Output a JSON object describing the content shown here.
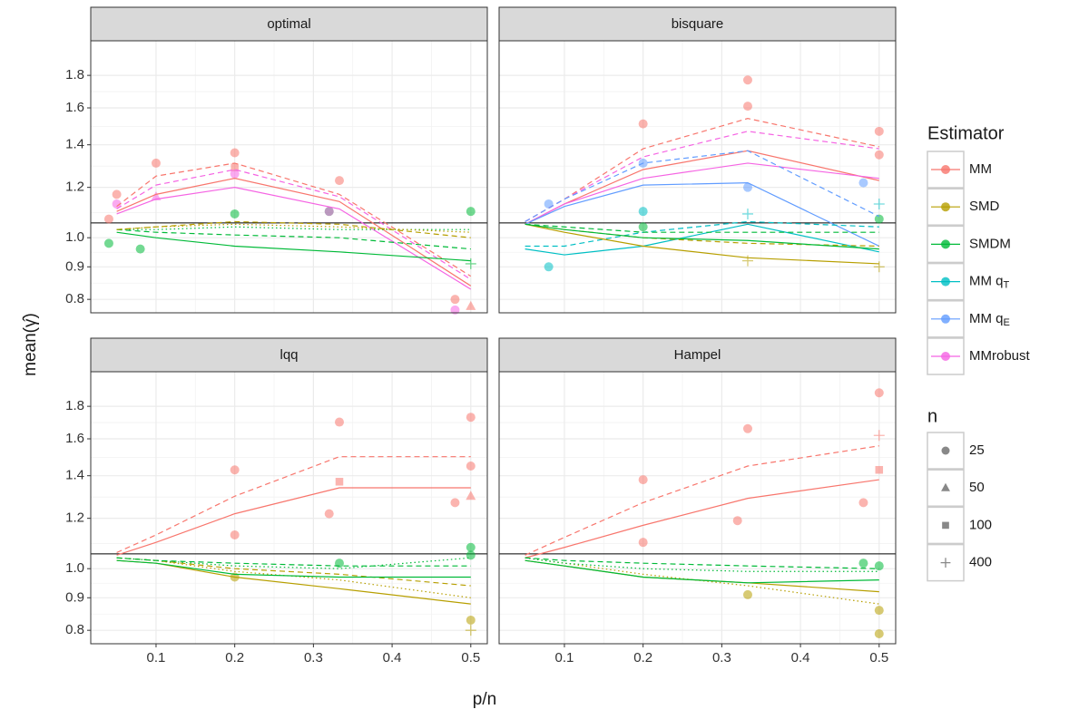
{
  "chart_data": [
    {
      "type": "line",
      "title": "optimal",
      "log_y": true,
      "grid": true,
      "hline": 1.055,
      "x": [
        0.05,
        0.1,
        0.2,
        0.333,
        0.5
      ],
      "xlim": [
        0.017,
        0.521
      ],
      "xticks": [
        0.1,
        0.2,
        0.3,
        0.4,
        0.5
      ],
      "ylim": [
        0.762,
        2.04
      ],
      "yticks": [
        0.8,
        0.9,
        {
          "value": 1,
          "label": "1.0"
        },
        1.2,
        1.4,
        1.6,
        1.8
      ],
      "series": [
        {
          "color": "#F8766D",
          "dash": "solid",
          "values": [
            1.1,
            1.17,
            1.24,
            1.14,
            0.84
          ]
        },
        {
          "color": "#F8766D",
          "dash": "dashed",
          "values": [
            1.12,
            1.25,
            1.31,
            1.17,
            0.87
          ]
        },
        {
          "color": "#F564E3",
          "dash": "solid",
          "values": [
            1.09,
            1.15,
            1.2,
            1.11,
            0.83
          ]
        },
        {
          "color": "#F564E3",
          "dash": "dashed",
          "values": [
            1.11,
            1.21,
            1.28,
            1.16,
            0.86
          ]
        },
        {
          "color": "#00BA38",
          "dash": "solid",
          "values": [
            1.02,
            1.0,
            0.97,
            0.95,
            0.92
          ]
        },
        {
          "color": "#00BA38",
          "dash": "dashed",
          "values": [
            1.03,
            1.02,
            1.01,
            1.0,
            0.96
          ]
        },
        {
          "color": "#00BA38",
          "dash": "dotted",
          "values": [
            1.03,
            1.03,
            1.04,
            1.03,
            1.03
          ]
        },
        {
          "color": "#B79F00",
          "dash": "dashed",
          "values": [
            1.03,
            1.04,
            1.06,
            1.05,
            1.0
          ]
        },
        {
          "color": "#B79F00",
          "dash": "dotted",
          "values": [
            1.03,
            1.04,
            1.05,
            1.04,
            1.02
          ]
        }
      ],
      "points": [
        {
          "color": "#F8766D",
          "x": [
            0.04,
            0.05,
            0.1,
            0.2,
            0.2,
            0.333,
            0.48,
            0.5
          ],
          "y": [
            1.07,
            1.17,
            1.31,
            1.36,
            1.29,
            1.23,
            0.8,
            0.78
          ],
          "n": [
            25,
            25,
            25,
            25,
            100,
            25,
            25,
            50
          ]
        },
        {
          "color": "#00BA38",
          "x": [
            0.04,
            0.08,
            0.2,
            0.32,
            0.5,
            0.5
          ],
          "y": [
            0.98,
            0.96,
            1.09,
            1.1,
            1.1,
            0.91
          ],
          "n": [
            25,
            25,
            25,
            25,
            25,
            400
          ]
        },
        {
          "color": "#F564E3",
          "x": [
            0.05,
            0.1,
            0.2,
            0.32,
            0.48
          ],
          "y": [
            1.13,
            1.16,
            1.26,
            1.1,
            0.77
          ],
          "n": [
            25,
            50,
            25,
            25,
            25
          ]
        }
      ]
    },
    {
      "type": "line",
      "title": "bisquare",
      "log_y": true,
      "grid": true,
      "hline": 1.055,
      "x": [
        0.05,
        0.1,
        0.2,
        0.333,
        0.5
      ],
      "xlim": [
        0.017,
        0.521
      ],
      "xticks": [
        0.1,
        0.2,
        0.3,
        0.4,
        0.5
      ],
      "ylim": [
        0.762,
        2.04
      ],
      "yticks": [
        0.8,
        0.9,
        {
          "value": 1,
          "label": "1.0"
        },
        1.2,
        1.4,
        1.6,
        1.8
      ],
      "series": [
        {
          "color": "#F8766D",
          "dash": "solid",
          "values": [
            1.05,
            1.13,
            1.28,
            1.37,
            1.23
          ]
        },
        {
          "color": "#F8766D",
          "dash": "dashed",
          "values": [
            1.06,
            1.15,
            1.38,
            1.54,
            1.39
          ]
        },
        {
          "color": "#F564E3",
          "dash": "solid",
          "values": [
            1.05,
            1.13,
            1.24,
            1.31,
            1.24
          ]
        },
        {
          "color": "#F564E3",
          "dash": "dashed",
          "values": [
            1.06,
            1.15,
            1.34,
            1.47,
            1.38
          ]
        },
        {
          "color": "#619CFF",
          "dash": "solid",
          "values": [
            1.05,
            1.12,
            1.21,
            1.22,
            0.97
          ]
        },
        {
          "color": "#619CFF",
          "dash": "dashed",
          "values": [
            1.06,
            1.15,
            1.31,
            1.37,
            1.08
          ]
        },
        {
          "color": "#00BFC4",
          "dash": "solid",
          "values": [
            0.96,
            0.94,
            0.97,
            1.05,
            0.95
          ]
        },
        {
          "color": "#00BFC4",
          "dash": "dashed",
          "values": [
            0.97,
            0.97,
            1.02,
            1.06,
            1.04
          ]
        },
        {
          "color": "#B79F00",
          "dash": "solid",
          "values": [
            1.05,
            1.02,
            0.97,
            0.93,
            0.91
          ]
        },
        {
          "color": "#B79F00",
          "dash": "dashed",
          "values": [
            1.05,
            1.03,
            1.0,
            0.98,
            0.97
          ]
        },
        {
          "color": "#00BA38",
          "dash": "solid",
          "values": [
            1.05,
            1.03,
            1.0,
            0.99,
            0.96
          ]
        },
        {
          "color": "#00BA38",
          "dash": "dashed",
          "values": [
            1.05,
            1.04,
            1.02,
            1.02,
            1.02
          ]
        }
      ],
      "points": [
        {
          "color": "#F8766D",
          "x": [
            0.2,
            0.333,
            0.333,
            0.5,
            0.5
          ],
          "y": [
            1.51,
            1.77,
            1.61,
            1.47,
            1.35
          ],
          "n": [
            25,
            25,
            25,
            25,
            25
          ]
        },
        {
          "color": "#00BFC4",
          "x": [
            0.08,
            0.2,
            0.333,
            0.5
          ],
          "y": [
            0.9,
            1.1,
            1.09,
            1.13
          ],
          "n": [
            25,
            25,
            400,
            400
          ]
        },
        {
          "color": "#619CFF",
          "x": [
            0.08,
            0.2,
            0.333,
            0.48
          ],
          "y": [
            1.13,
            1.31,
            1.2,
            1.22
          ],
          "n": [
            25,
            25,
            25,
            25
          ]
        },
        {
          "color": "#B79F00",
          "x": [
            0.333,
            0.5
          ],
          "y": [
            0.92,
            0.9
          ],
          "n": [
            400,
            400
          ]
        },
        {
          "color": "#00BA38",
          "x": [
            0.2,
            0.5
          ],
          "y": [
            1.04,
            1.07
          ],
          "n": [
            25,
            25
          ]
        }
      ]
    },
    {
      "type": "line",
      "title": "lqq",
      "log_y": true,
      "grid": true,
      "hline": 1.055,
      "x": [
        0.05,
        0.1,
        0.2,
        0.333,
        0.5
      ],
      "xlim": [
        0.017,
        0.521
      ],
      "xticks": [
        0.1,
        0.2,
        0.3,
        0.4,
        0.5
      ],
      "ylim": [
        0.762,
        2.04
      ],
      "yticks": [
        0.8,
        0.9,
        {
          "value": 1,
          "label": "1.0"
        },
        1.2,
        1.4,
        1.6,
        1.8
      ],
      "series": [
        {
          "color": "#F8766D",
          "dash": "solid",
          "values": [
            1.05,
            1.1,
            1.22,
            1.34,
            1.34
          ]
        },
        {
          "color": "#F8766D",
          "dash": "dashed",
          "values": [
            1.06,
            1.13,
            1.3,
            1.5,
            1.5
          ]
        },
        {
          "color": "#B79F00",
          "dash": "solid",
          "values": [
            1.03,
            1.02,
            0.97,
            0.93,
            0.88
          ]
        },
        {
          "color": "#B79F00",
          "dash": "dashed",
          "values": [
            1.04,
            1.03,
            1.0,
            0.98,
            0.94
          ]
        },
        {
          "color": "#B79F00",
          "dash": "dotted",
          "values": [
            1.04,
            1.03,
            0.99,
            0.96,
            0.9
          ]
        },
        {
          "color": "#00BA38",
          "dash": "solid",
          "values": [
            1.03,
            1.02,
            0.98,
            0.97,
            0.97
          ]
        },
        {
          "color": "#00BA38",
          "dash": "dashed",
          "values": [
            1.04,
            1.03,
            1.02,
            1.01,
            1.01
          ]
        },
        {
          "color": "#00BA38",
          "dash": "dotted",
          "values": [
            1.04,
            1.03,
            1.01,
            1.0,
            1.04
          ]
        }
      ],
      "points": [
        {
          "color": "#F8766D",
          "x": [
            0.2,
            0.2,
            0.32,
            0.333,
            0.333,
            0.5,
            0.5,
            0.5,
            0.48
          ],
          "y": [
            1.43,
            1.13,
            1.22,
            1.7,
            1.37,
            1.73,
            1.3,
            1.45,
            1.27
          ],
          "n": [
            25,
            25,
            25,
            25,
            100,
            25,
            50,
            25,
            25
          ]
        },
        {
          "color": "#B79F00",
          "x": [
            0.5,
            0.5,
            0.2
          ],
          "y": [
            0.8,
            0.83,
            0.97
          ],
          "n": [
            400,
            25,
            25
          ]
        },
        {
          "color": "#00BA38",
          "x": [
            0.5,
            0.5,
            0.333
          ],
          "y": [
            1.08,
            1.05,
            1.02
          ],
          "n": [
            25,
            25,
            25
          ]
        }
      ]
    },
    {
      "type": "line",
      "title": "Hampel",
      "log_y": true,
      "grid": true,
      "hline": 1.055,
      "x": [
        0.05,
        0.1,
        0.2,
        0.333,
        0.5
      ],
      "xlim": [
        0.017,
        0.521
      ],
      "xticks": [
        0.1,
        0.2,
        0.3,
        0.4,
        0.5
      ],
      "ylim": [
        0.762,
        2.04
      ],
      "yticks": [
        0.8,
        0.9,
        {
          "value": 1,
          "label": "1.0"
        },
        1.2,
        1.4,
        1.6,
        1.8
      ],
      "series": [
        {
          "color": "#F8766D",
          "dash": "solid",
          "values": [
            1.04,
            1.08,
            1.17,
            1.29,
            1.38
          ]
        },
        {
          "color": "#F8766D",
          "dash": "dashed",
          "values": [
            1.05,
            1.12,
            1.27,
            1.45,
            1.56
          ]
        },
        {
          "color": "#B79F00",
          "dash": "solid",
          "values": [
            1.03,
            1.01,
            0.97,
            0.95,
            0.92
          ]
        },
        {
          "color": "#B79F00",
          "dash": "dotted",
          "values": [
            1.04,
            1.02,
            0.98,
            0.94,
            0.88
          ]
        },
        {
          "color": "#00BA38",
          "dash": "solid",
          "values": [
            1.03,
            1.01,
            0.97,
            0.95,
            0.96
          ]
        },
        {
          "color": "#00BA38",
          "dash": "dashed",
          "values": [
            1.04,
            1.03,
            1.02,
            1.01,
            1.0
          ]
        },
        {
          "color": "#00BA38",
          "dash": "dotted",
          "values": [
            1.04,
            1.02,
            1.0,
            0.99,
            0.99
          ]
        }
      ],
      "points": [
        {
          "color": "#F8766D",
          "x": [
            0.2,
            0.2,
            0.32,
            0.333,
            0.5,
            0.5,
            0.5,
            0.48
          ],
          "y": [
            1.38,
            1.1,
            1.19,
            1.66,
            1.89,
            1.62,
            1.43,
            1.27
          ],
          "n": [
            25,
            25,
            25,
            25,
            25,
            400,
            100,
            25
          ]
        },
        {
          "color": "#B79F00",
          "x": [
            0.5,
            0.333,
            0.5
          ],
          "y": [
            0.79,
            0.91,
            0.86
          ],
          "n": [
            25,
            25,
            25
          ]
        },
        {
          "color": "#00BA38",
          "x": [
            0.5,
            0.48
          ],
          "y": [
            1.01,
            1.02
          ],
          "n": [
            25,
            25
          ]
        }
      ]
    }
  ],
  "axes": {
    "xlabel": "p/n",
    "ylabel": "mean(γ̂)"
  },
  "legend": {
    "title": "Estimator",
    "items": [
      {
        "name": "MM",
        "color": "#F8766D"
      },
      {
        "name": "SMD",
        "color": "#B79F00"
      },
      {
        "name": "SMDM",
        "color": "#00BA38"
      },
      {
        "name": "MM qT",
        "color": "#00BFC4",
        "subscript_last": true
      },
      {
        "name": "MM qE",
        "color": "#619CFF",
        "subscript_last": true
      },
      {
        "name": "MMrobust",
        "color": "#F564E3"
      }
    ]
  },
  "shape_legend": {
    "title": "n",
    "items": [
      {
        "label": 25,
        "shape": "circle"
      },
      {
        "label": 50,
        "shape": "triangle"
      },
      {
        "label": 100,
        "shape": "square"
      },
      {
        "label": 400,
        "shape": "plus"
      }
    ]
  }
}
